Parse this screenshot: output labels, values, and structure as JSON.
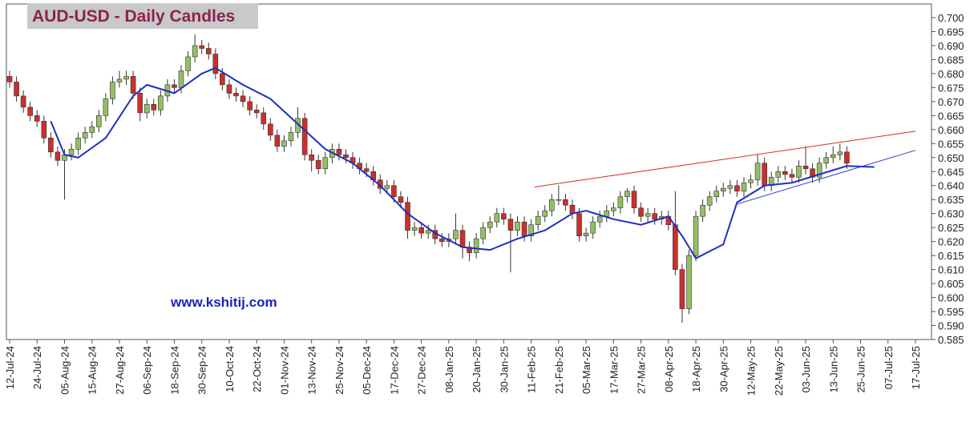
{
  "chart_data": {
    "type": "candlestick",
    "title": "AUD-USD - Daily Candles",
    "annotation": "www.kshitij.com",
    "up_color": "#93c062",
    "down_color": "#cc2f2a",
    "xlim": [
      0,
      264
    ],
    "ylim": [
      0.585,
      0.7
    ],
    "xticks": [
      {
        "value": 0,
        "label": "12-Jul-24"
      },
      {
        "value": 8,
        "label": "24-Jul-24"
      },
      {
        "value": 16,
        "label": "05-Aug-24"
      },
      {
        "value": 24,
        "label": "15-Aug-24"
      },
      {
        "value": 32,
        "label": "27-Aug-24"
      },
      {
        "value": 40,
        "label": "06-Sep-24"
      },
      {
        "value": 48,
        "label": "18-Sep-24"
      },
      {
        "value": 56,
        "label": "30-Sep-24"
      },
      {
        "value": 64,
        "label": "10-Oct-24"
      },
      {
        "value": 72,
        "label": "22-Oct-24"
      },
      {
        "value": 80,
        "label": "01-Nov-24"
      },
      {
        "value": 88,
        "label": "13-Nov-24"
      },
      {
        "value": 96,
        "label": "25-Nov-24"
      },
      {
        "value": 104,
        "label": "05-Dec-24"
      },
      {
        "value": 112,
        "label": "17-Dec-24"
      },
      {
        "value": 120,
        "label": "27-Dec-24"
      },
      {
        "value": 128,
        "label": "08-Jan-25"
      },
      {
        "value": 136,
        "label": "20-Jan-25"
      },
      {
        "value": 144,
        "label": "30-Jan-25"
      },
      {
        "value": 152,
        "label": "11-Feb-25"
      },
      {
        "value": 160,
        "label": "21-Feb-25"
      },
      {
        "value": 168,
        "label": "05-Mar-25"
      },
      {
        "value": 176,
        "label": "17-Mar-25"
      },
      {
        "value": 184,
        "label": "27-Mar-25"
      },
      {
        "value": 192,
        "label": "08-Apr-25"
      },
      {
        "value": 200,
        "label": "18-Apr-25"
      },
      {
        "value": 208,
        "label": "30-Apr-25"
      },
      {
        "value": 216,
        "label": "12-May-25"
      },
      {
        "value": 224,
        "label": "22-May-25"
      },
      {
        "value": 232,
        "label": "03-Jun-25"
      },
      {
        "value": 240,
        "label": "13-Jun-25"
      },
      {
        "value": 248,
        "label": "25-Jun-25"
      },
      {
        "value": 256,
        "label": "07-Jul-25"
      },
      {
        "value": 264,
        "label": "17-Jul-25"
      }
    ],
    "yticks": [
      {
        "value": 0.585,
        "label": "0.585"
      },
      {
        "value": 0.59,
        "label": "0.590"
      },
      {
        "value": 0.595,
        "label": "0.595"
      },
      {
        "value": 0.6,
        "label": "0.600"
      },
      {
        "value": 0.605,
        "label": "0.605"
      },
      {
        "value": 0.61,
        "label": "0.610"
      },
      {
        "value": 0.615,
        "label": "0.615"
      },
      {
        "value": 0.62,
        "label": "0.620"
      },
      {
        "value": 0.625,
        "label": "0.625"
      },
      {
        "value": 0.63,
        "label": "0.630"
      },
      {
        "value": 0.635,
        "label": "0.635"
      },
      {
        "value": 0.64,
        "label": "0.640"
      },
      {
        "value": 0.645,
        "label": "0.645"
      },
      {
        "value": 0.65,
        "label": "0.650"
      },
      {
        "value": 0.655,
        "label": "0.655"
      },
      {
        "value": 0.66,
        "label": "0.660"
      },
      {
        "value": 0.665,
        "label": "0.665"
      },
      {
        "value": 0.67,
        "label": "0.670"
      },
      {
        "value": 0.675,
        "label": "0.675"
      },
      {
        "value": 0.68,
        "label": "0.680"
      },
      {
        "value": 0.685,
        "label": "0.685"
      },
      {
        "value": 0.69,
        "label": "0.690"
      },
      {
        "value": 0.695,
        "label": "0.695"
      },
      {
        "value": 0.7,
        "label": "0.700"
      }
    ],
    "x": [
      0,
      2,
      4,
      6,
      8,
      10,
      12,
      14,
      16,
      18,
      20,
      22,
      24,
      26,
      28,
      30,
      32,
      34,
      36,
      38,
      40,
      42,
      44,
      46,
      48,
      50,
      52,
      54,
      56,
      58,
      60,
      62,
      64,
      66,
      68,
      70,
      72,
      74,
      76,
      78,
      80,
      82,
      84,
      86,
      88,
      90,
      92,
      94,
      96,
      98,
      100,
      102,
      104,
      106,
      108,
      110,
      112,
      114,
      116,
      118,
      120,
      122,
      124,
      126,
      128,
      130,
      132,
      134,
      136,
      138,
      140,
      142,
      144,
      146,
      148,
      150,
      152,
      154,
      156,
      158,
      160,
      162,
      164,
      166,
      168,
      170,
      172,
      174,
      176,
      178,
      180,
      182,
      184,
      186,
      188,
      190,
      192,
      194,
      196,
      198,
      200,
      202,
      204,
      206,
      208,
      210,
      212,
      214,
      216,
      218,
      220,
      222,
      224,
      226,
      228,
      230,
      232,
      234,
      236,
      238,
      240,
      242,
      244
    ],
    "ohlc": [
      [
        0.679,
        0.681,
        0.675,
        0.677
      ],
      [
        0.677,
        0.679,
        0.67,
        0.672
      ],
      [
        0.672,
        0.674,
        0.666,
        0.668
      ],
      [
        0.668,
        0.67,
        0.663,
        0.665
      ],
      [
        0.665,
        0.667,
        0.661,
        0.663
      ],
      [
        0.663,
        0.665,
        0.655,
        0.657
      ],
      [
        0.657,
        0.659,
        0.65,
        0.652
      ],
      [
        0.652,
        0.654,
        0.647,
        0.649
      ],
      [
        0.649,
        0.653,
        0.635,
        0.651
      ],
      [
        0.651,
        0.655,
        0.649,
        0.653
      ],
      [
        0.653,
        0.659,
        0.651,
        0.657
      ],
      [
        0.657,
        0.661,
        0.655,
        0.659
      ],
      [
        0.659,
        0.663,
        0.657,
        0.661
      ],
      [
        0.661,
        0.667,
        0.659,
        0.665
      ],
      [
        0.665,
        0.673,
        0.663,
        0.671
      ],
      [
        0.671,
        0.679,
        0.669,
        0.677
      ],
      [
        0.677,
        0.681,
        0.675,
        0.678
      ],
      [
        0.678,
        0.681,
        0.676,
        0.679
      ],
      [
        0.679,
        0.681,
        0.671,
        0.673
      ],
      [
        0.673,
        0.675,
        0.663,
        0.666
      ],
      [
        0.666,
        0.671,
        0.664,
        0.669
      ],
      [
        0.669,
        0.671,
        0.665,
        0.667
      ],
      [
        0.667,
        0.674,
        0.665,
        0.672
      ],
      [
        0.672,
        0.678,
        0.67,
        0.676
      ],
      [
        0.676,
        0.678,
        0.673,
        0.675
      ],
      [
        0.675,
        0.683,
        0.673,
        0.681
      ],
      [
        0.681,
        0.688,
        0.679,
        0.686
      ],
      [
        0.686,
        0.694,
        0.684,
        0.69
      ],
      [
        0.69,
        0.692,
        0.687,
        0.689
      ],
      [
        0.689,
        0.691,
        0.685,
        0.687
      ],
      [
        0.687,
        0.689,
        0.678,
        0.68
      ],
      [
        0.68,
        0.682,
        0.674,
        0.676
      ],
      [
        0.676,
        0.678,
        0.671,
        0.673
      ],
      [
        0.673,
        0.675,
        0.67,
        0.672
      ],
      [
        0.672,
        0.674,
        0.668,
        0.67
      ],
      [
        0.67,
        0.672,
        0.665,
        0.667
      ],
      [
        0.667,
        0.669,
        0.664,
        0.666
      ],
      [
        0.666,
        0.668,
        0.66,
        0.662
      ],
      [
        0.662,
        0.664,
        0.656,
        0.658
      ],
      [
        0.658,
        0.66,
        0.652,
        0.654
      ],
      [
        0.654,
        0.658,
        0.652,
        0.656
      ],
      [
        0.656,
        0.661,
        0.654,
        0.659
      ],
      [
        0.659,
        0.668,
        0.657,
        0.664
      ],
      [
        0.664,
        0.666,
        0.649,
        0.651
      ],
      [
        0.651,
        0.653,
        0.645,
        0.649
      ],
      [
        0.649,
        0.651,
        0.644,
        0.646
      ],
      [
        0.646,
        0.652,
        0.644,
        0.65
      ],
      [
        0.65,
        0.655,
        0.648,
        0.653
      ],
      [
        0.653,
        0.655,
        0.649,
        0.651
      ],
      [
        0.651,
        0.653,
        0.648,
        0.65
      ],
      [
        0.65,
        0.652,
        0.646,
        0.648
      ],
      [
        0.648,
        0.65,
        0.644,
        0.646
      ],
      [
        0.646,
        0.648,
        0.643,
        0.645
      ],
      [
        0.645,
        0.647,
        0.64,
        0.642
      ],
      [
        0.642,
        0.644,
        0.637,
        0.639
      ],
      [
        0.639,
        0.642,
        0.637,
        0.64
      ],
      [
        0.64,
        0.642,
        0.634,
        0.636
      ],
      [
        0.636,
        0.638,
        0.632,
        0.634
      ],
      [
        0.634,
        0.636,
        0.621,
        0.624
      ],
      [
        0.624,
        0.627,
        0.622,
        0.625
      ],
      [
        0.625,
        0.627,
        0.621,
        0.623
      ],
      [
        0.623,
        0.626,
        0.621,
        0.624
      ],
      [
        0.624,
        0.626,
        0.619,
        0.621
      ],
      [
        0.621,
        0.623,
        0.618,
        0.62
      ],
      [
        0.62,
        0.623,
        0.618,
        0.621
      ],
      [
        0.621,
        0.63,
        0.619,
        0.624
      ],
      [
        0.624,
        0.626,
        0.614,
        0.618
      ],
      [
        0.618,
        0.62,
        0.613,
        0.616
      ],
      [
        0.616,
        0.623,
        0.614,
        0.621
      ],
      [
        0.621,
        0.627,
        0.619,
        0.625
      ],
      [
        0.625,
        0.629,
        0.623,
        0.627
      ],
      [
        0.627,
        0.632,
        0.625,
        0.63
      ],
      [
        0.63,
        0.632,
        0.626,
        0.628
      ],
      [
        0.628,
        0.63,
        0.609,
        0.624
      ],
      [
        0.624,
        0.629,
        0.622,
        0.627
      ],
      [
        0.627,
        0.629,
        0.62,
        0.622
      ],
      [
        0.622,
        0.628,
        0.62,
        0.626
      ],
      [
        0.626,
        0.631,
        0.624,
        0.629
      ],
      [
        0.629,
        0.633,
        0.627,
        0.631
      ],
      [
        0.631,
        0.637,
        0.629,
        0.635
      ],
      [
        0.635,
        0.64,
        0.633,
        0.635
      ],
      [
        0.635,
        0.637,
        0.631,
        0.633
      ],
      [
        0.633,
        0.635,
        0.628,
        0.63
      ],
      [
        0.63,
        0.632,
        0.62,
        0.622
      ],
      [
        0.622,
        0.625,
        0.62,
        0.623
      ],
      [
        0.623,
        0.629,
        0.621,
        0.627
      ],
      [
        0.627,
        0.631,
        0.625,
        0.629
      ],
      [
        0.629,
        0.633,
        0.627,
        0.631
      ],
      [
        0.631,
        0.634,
        0.629,
        0.632
      ],
      [
        0.632,
        0.638,
        0.63,
        0.636
      ],
      [
        0.636,
        0.639,
        0.634,
        0.638
      ],
      [
        0.638,
        0.64,
        0.63,
        0.632
      ],
      [
        0.632,
        0.634,
        0.627,
        0.629
      ],
      [
        0.629,
        0.632,
        0.627,
        0.63
      ],
      [
        0.63,
        0.632,
        0.626,
        0.628
      ],
      [
        0.628,
        0.631,
        0.626,
        0.629
      ],
      [
        0.629,
        0.631,
        0.624,
        0.626
      ],
      [
        0.626,
        0.638,
        0.608,
        0.61
      ],
      [
        0.61,
        0.612,
        0.591,
        0.596
      ],
      [
        0.596,
        0.617,
        0.594,
        0.615
      ],
      [
        0.615,
        0.631,
        0.613,
        0.629
      ],
      [
        0.629,
        0.635,
        0.627,
        0.633
      ],
      [
        0.633,
        0.638,
        0.631,
        0.636
      ],
      [
        0.636,
        0.64,
        0.634,
        0.638
      ],
      [
        0.638,
        0.641,
        0.636,
        0.639
      ],
      [
        0.639,
        0.642,
        0.637,
        0.64
      ],
      [
        0.64,
        0.642,
        0.636,
        0.638
      ],
      [
        0.638,
        0.643,
        0.636,
        0.641
      ],
      [
        0.641,
        0.644,
        0.639,
        0.642
      ],
      [
        0.642,
        0.651,
        0.64,
        0.648
      ],
      [
        0.648,
        0.65,
        0.638,
        0.64
      ],
      [
        0.64,
        0.645,
        0.638,
        0.643
      ],
      [
        0.643,
        0.647,
        0.641,
        0.645
      ],
      [
        0.645,
        0.647,
        0.642,
        0.644
      ],
      [
        0.644,
        0.646,
        0.641,
        0.643
      ],
      [
        0.643,
        0.649,
        0.641,
        0.647
      ],
      [
        0.647,
        0.654,
        0.644,
        0.646
      ],
      [
        0.646,
        0.648,
        0.641,
        0.643
      ],
      [
        0.643,
        0.65,
        0.641,
        0.648
      ],
      [
        0.648,
        0.652,
        0.646,
        0.65
      ],
      [
        0.65,
        0.654,
        0.648,
        0.651
      ],
      [
        0.651,
        0.655,
        0.649,
        0.652
      ],
      [
        0.652,
        0.654,
        0.646,
        0.648
      ]
    ],
    "moving_average": {
      "color": "#1f2fbf",
      "x": [
        12,
        16,
        20,
        28,
        36,
        40,
        48,
        56,
        60,
        68,
        76,
        84,
        92,
        100,
        108,
        116,
        124,
        132,
        140,
        148,
        156,
        164,
        168,
        176,
        184,
        192,
        196,
        200,
        208,
        212,
        220,
        228,
        236,
        244,
        252
      ],
      "values": [
        0.663,
        0.651,
        0.65,
        0.657,
        0.672,
        0.676,
        0.673,
        0.68,
        0.682,
        0.676,
        0.671,
        0.662,
        0.653,
        0.648,
        0.64,
        0.63,
        0.623,
        0.618,
        0.617,
        0.621,
        0.624,
        0.63,
        0.631,
        0.628,
        0.626,
        0.629,
        0.622,
        0.614,
        0.619,
        0.634,
        0.64,
        0.641,
        0.644,
        0.647,
        0.6466
      ]
    },
    "trend_lines": [
      {
        "color": "#d0302a",
        "x": [
          153,
          264
        ],
        "values": [
          0.6395,
          0.6594
        ]
      },
      {
        "color": "#2b3fc0",
        "x": [
          212,
          264
        ],
        "values": [
          0.6334,
          0.6526
        ]
      }
    ]
  }
}
